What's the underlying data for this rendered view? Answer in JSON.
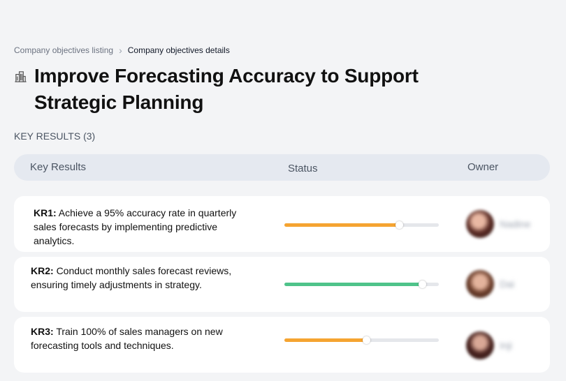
{
  "breadcrumb": {
    "parent": "Company objectives listing",
    "separator": "›",
    "current": "Company objectives details"
  },
  "objective": {
    "icon": "building-icon",
    "title": "Improve Forecasting Accuracy to Support Strategic Planning"
  },
  "key_results_label": "KEY RESULTS (3)",
  "table": {
    "columns": {
      "key_results": "Key Results",
      "status": "Status",
      "owner": "Owner"
    },
    "rows": [
      {
        "code": "KR1:",
        "text": "Achieve a 95% accuracy rate in quarterly sales forecasts by implementing predictive analytics.",
        "progress": 0.74,
        "progress_color": "#f5a431",
        "owner": "Nadine"
      },
      {
        "code": "KR2:",
        "text": "Conduct monthly sales forecast reviews, ensuring timely adjustments in strategy.",
        "progress": 0.89,
        "progress_color": "#4fc38a",
        "owner": "Dai"
      },
      {
        "code": "KR3:",
        "text": "Train 100% of sales managers on new forecasting tools and techniques.",
        "progress": 0.53,
        "progress_color": "#f5a431",
        "owner": "Inji"
      }
    ]
  }
}
